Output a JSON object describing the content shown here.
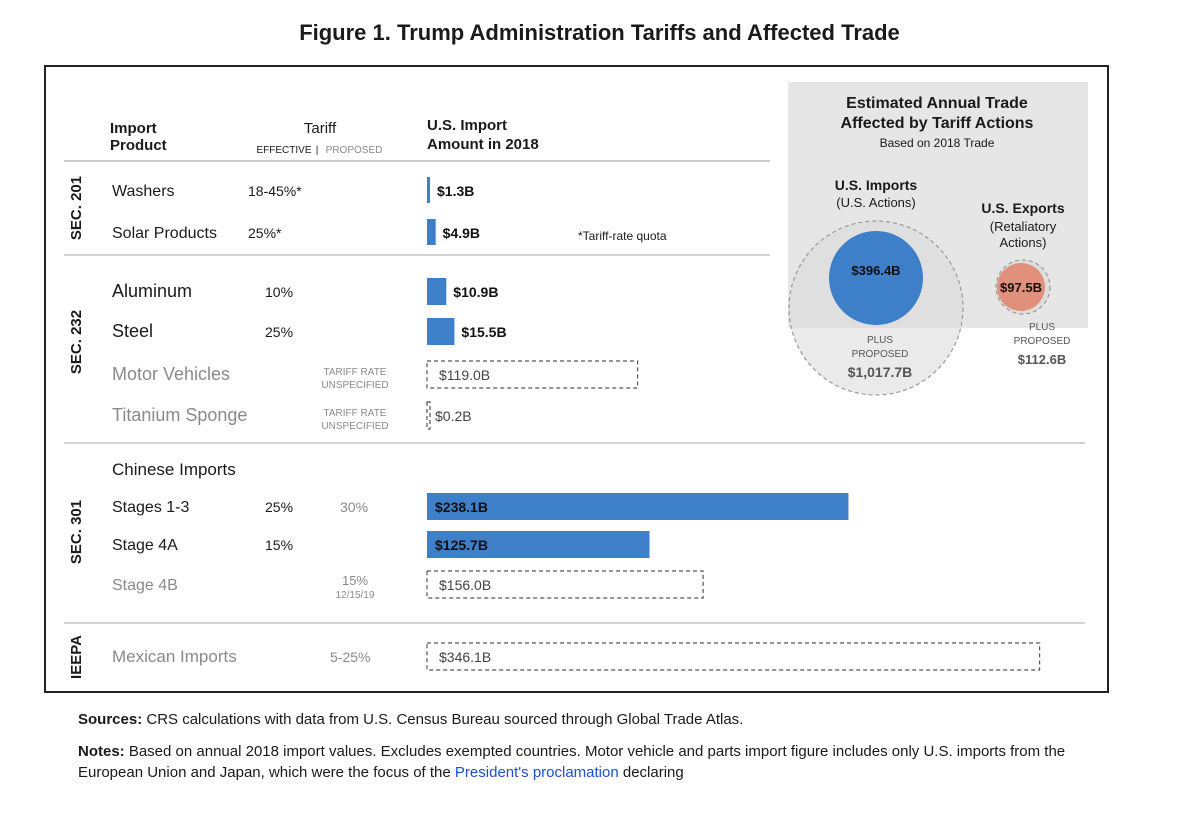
{
  "figure_title": "Figure 1. Trump Administration Tariffs and Affected Trade",
  "chart_data": {
    "type": "bar",
    "title": "Figure 1. Trump Administration Tariffs and Affected Trade",
    "headers": {
      "product_line1": "Import",
      "product_line2": "Product",
      "tariff": "Tariff",
      "effective": "EFFECTIVE",
      "sep": "|",
      "proposed": "PROPOSED",
      "amount_line1": "U.S. Import",
      "amount_line2": "Amount in 2018"
    },
    "value_unit": "billion USD",
    "rows": [
      {
        "section": "SEC. 201",
        "product": "Washers",
        "effective": "18-45%*",
        "proposed": "",
        "value": 1.3,
        "label": "$1.3B",
        "status": "effective"
      },
      {
        "section": "SEC. 201",
        "product": "Solar Products",
        "effective": "25%*",
        "proposed": "",
        "value": 4.9,
        "label": "$4.9B",
        "status": "effective"
      },
      {
        "section": "SEC. 232",
        "product": "Aluminum",
        "effective": "10%",
        "proposed": "",
        "value": 10.9,
        "label": "$10.9B",
        "status": "effective"
      },
      {
        "section": "SEC. 232",
        "product": "Steel",
        "effective": "25%",
        "proposed": "",
        "value": 15.5,
        "label": "$15.5B",
        "status": "effective"
      },
      {
        "section": "SEC. 232",
        "product": "Motor Vehicles",
        "effective": "",
        "proposed": "TARIFF RATE|UNSPECIFIED",
        "value": 119.0,
        "label": "$119.0B",
        "status": "proposed"
      },
      {
        "section": "SEC. 232",
        "product": "Titanium Sponge",
        "effective": "",
        "proposed": "TARIFF RATE|UNSPECIFIED",
        "value": 0.2,
        "label": "$0.2B",
        "status": "proposed"
      },
      {
        "section": "SEC. 301",
        "product": "Stages 1-3",
        "effective": "25%",
        "proposed": "30%",
        "value": 238.1,
        "label": "$238.1B",
        "status": "effective"
      },
      {
        "section": "SEC. 301",
        "product": "Stage 4A",
        "effective": "15%",
        "proposed": "",
        "value": 125.7,
        "label": "$125.7B",
        "status": "effective"
      },
      {
        "section": "SEC. 301",
        "product": "Stage 4B",
        "effective": "",
        "proposed": "15%|12/15/19",
        "value": 156.0,
        "label": "$156.0B",
        "status": "proposed"
      },
      {
        "section": "IEEPA",
        "product": "Mexican Imports",
        "effective": "",
        "proposed": "5-25%",
        "value": 346.1,
        "label": "$346.1B",
        "status": "proposed"
      }
    ],
    "sections": [
      "SEC. 201",
      "SEC. 232",
      "SEC. 301",
      "IEEPA"
    ],
    "group_header": "Chinese Imports",
    "footnote": "*Tariff-rate quota",
    "side_panel": {
      "title_line1": "Estimated Annual Trade",
      "title_line2": "Affected by Tariff Actions",
      "subtitle": "Based on 2018 Trade",
      "imports": {
        "title": "U.S. Imports",
        "subtitle": "(U.S. Actions)",
        "value": 396.4,
        "label": "$396.4B",
        "plus_line1": "PLUS",
        "plus_line2": "PROPOSED",
        "proposed_value": 1017.7,
        "proposed_label": "$1,017.7B"
      },
      "exports": {
        "title": "U.S. Exports",
        "subtitle_line1": "(Retaliatory",
        "subtitle_line2": "Actions)",
        "value": 97.5,
        "label": "$97.5B",
        "plus_line1": "PLUS",
        "plus_line2": "PROPOSED",
        "proposed_value": 112.6,
        "proposed_label": "$112.6B"
      }
    }
  },
  "sources": {
    "label": "Sources:",
    "text": " CRS calculations with data from U.S. Census Bureau sourced through Global Trade Atlas."
  },
  "notes": {
    "label": "Notes:",
    "text": " Based on annual 2018 import values. Excludes exempted countries. Motor vehicle and parts import figure includes only U.S. imports from the European Union and Japan, which were the focus of the ",
    "link": "President's proclamation",
    "text_after": " declaring"
  },
  "colors": {
    "effective_bar": "#3e7fc9",
    "export_circle": "#e0907b",
    "panel_bg": "#e6e6e6",
    "proposed_circle": "#d9d9d9",
    "muted_text": "#8a8a8a"
  }
}
